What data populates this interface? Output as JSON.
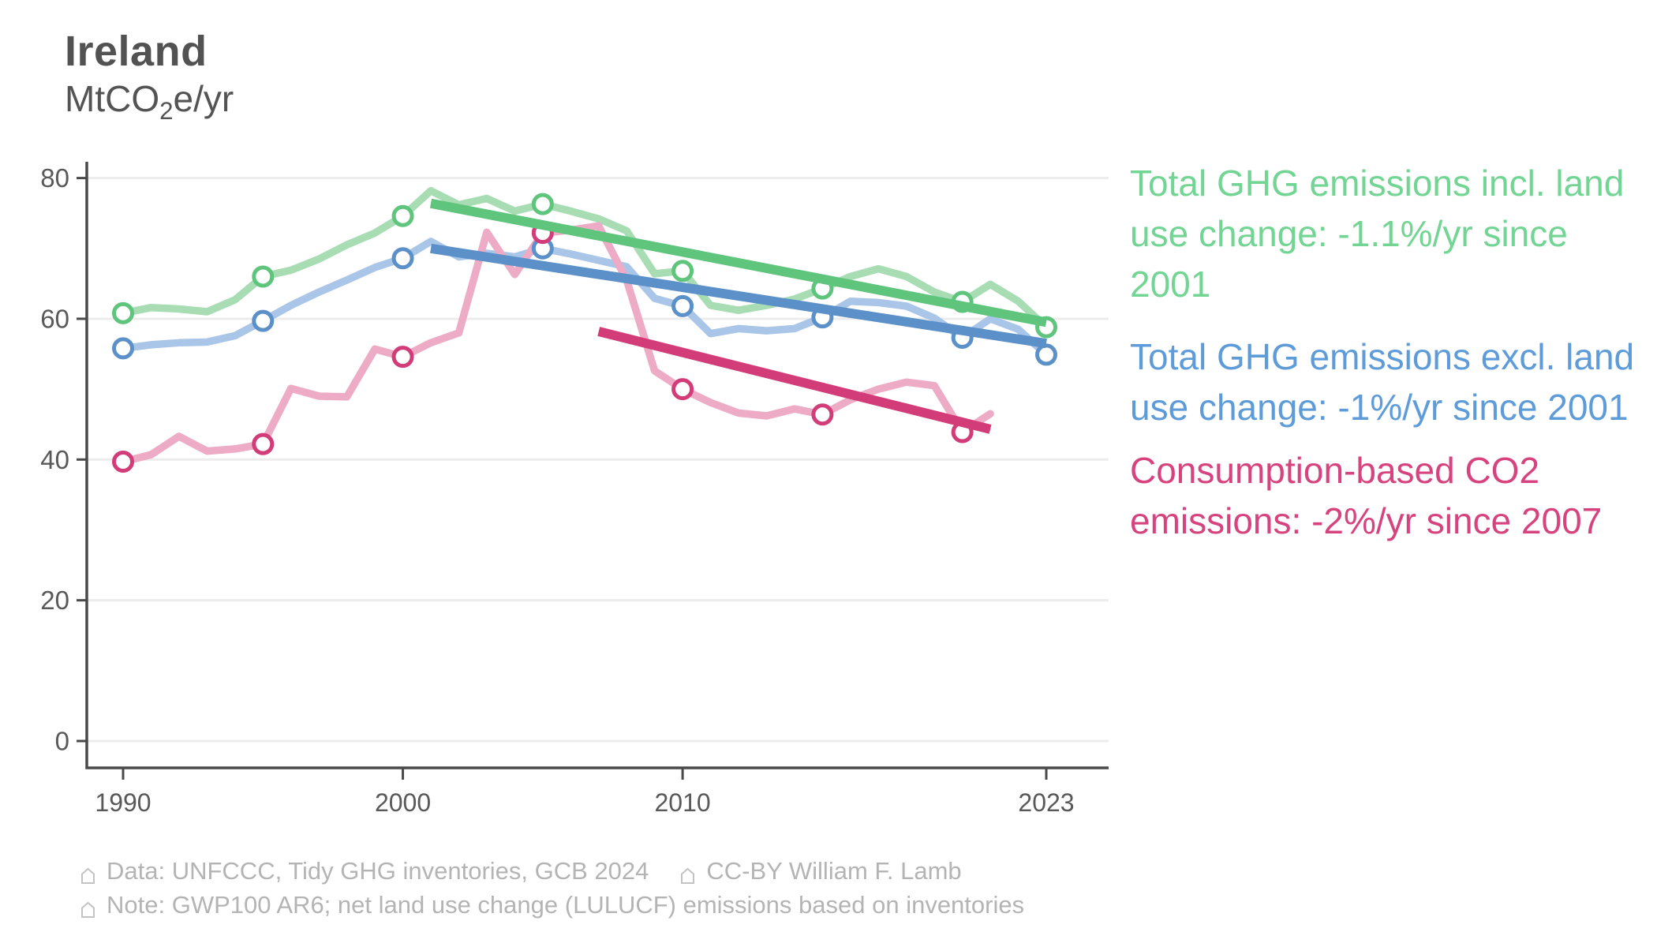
{
  "header": {
    "title": "Ireland",
    "unit_pre": "MtCO",
    "unit_sub": "2",
    "unit_post": "e/yr"
  },
  "chart_data": {
    "type": "line",
    "title": "Ireland",
    "ylabel": "MtCO2e/yr",
    "xlabel": "",
    "grid": "horizontal",
    "xlim": [
      1988.8,
      2025
    ],
    "ylim": [
      0,
      84
    ],
    "x_ticks": [
      {
        "year": 1990,
        "label": "1990"
      },
      {
        "year": 2000,
        "label": "2000"
      },
      {
        "year": 2010,
        "label": "2010"
      },
      {
        "year": 2023,
        "label": "2023"
      }
    ],
    "y_ticks": [
      {
        "value": 0,
        "label": "0"
      },
      {
        "value": 20,
        "label": "20"
      },
      {
        "value": 40,
        "label": "40"
      },
      {
        "value": 60,
        "label": "60"
      },
      {
        "value": 80,
        "label": "80"
      }
    ],
    "series": [
      {
        "id": "ghg-incl-luc",
        "name": "Total GHG emissions incl. land use change",
        "x_start": 1990,
        "values": [
          60.8,
          61.6,
          61.4,
          61.0,
          62.7,
          66.0,
          66.9,
          68.5,
          70.5,
          72.2,
          74.6,
          78.2,
          76.2,
          77.1,
          75.3,
          76.3,
          75.3,
          74.2,
          72.5,
          66.4,
          66.8,
          61.9,
          61.2,
          61.9,
          62.8,
          64.3,
          66.0,
          67.1,
          66.0,
          63.8,
          62.4,
          64.9,
          62.5,
          58.8
        ],
        "marker_years": [
          1990,
          1995,
          2000,
          2005,
          2010,
          2015,
          2020,
          2023
        ],
        "trend": {
          "label": "-1.1%/yr since 2001",
          "from": {
            "year": 2001,
            "value": 76.4
          },
          "to": {
            "year": 2023,
            "value": 59.5
          }
        },
        "color_line": "#a8ddb4",
        "color_accent": "#5fc47c"
      },
      {
        "id": "ghg-excl-luc",
        "name": "Total GHG emissions excl. land use change",
        "x_start": 1990,
        "values": [
          55.8,
          56.3,
          56.6,
          56.7,
          57.6,
          59.7,
          61.9,
          63.8,
          65.5,
          67.3,
          68.6,
          71.0,
          68.8,
          69.3,
          68.8,
          70.0,
          69.2,
          68.3,
          67.4,
          62.9,
          61.8,
          57.9,
          58.6,
          58.3,
          58.6,
          60.2,
          62.5,
          62.3,
          61.8,
          60.1,
          57.3,
          60.0,
          58.5,
          54.9
        ],
        "marker_years": [
          1990,
          1995,
          2000,
          2005,
          2010,
          2015,
          2020,
          2023
        ],
        "trend": {
          "label": "-1%/yr since 2001",
          "from": {
            "year": 2001,
            "value": 70.0
          },
          "to": {
            "year": 2023,
            "value": 56.5
          }
        },
        "color_line": "#a9c5e8",
        "color_accent": "#5b90c9"
      },
      {
        "id": "consumption-co2",
        "name": "Consumption-based CO2 emissions",
        "x_start": 1990,
        "values": [
          39.7,
          40.7,
          43.3,
          41.2,
          41.5,
          42.2,
          50.1,
          49.0,
          48.9,
          55.7,
          54.6,
          56.6,
          58.0,
          72.3,
          66.3,
          72.2,
          72.6,
          73.2,
          65.5,
          52.6,
          50.0,
          48.1,
          46.6,
          46.2,
          47.2,
          46.4,
          48.5,
          50.0,
          51.0,
          50.5,
          43.9,
          46.5
        ],
        "marker_years": [
          1990,
          1995,
          2000,
          2005,
          2010,
          2015,
          2020
        ],
        "trend": {
          "label": "-2%/yr since 2007",
          "from": {
            "year": 2007,
            "value": 58.2
          },
          "to": {
            "year": 2021,
            "value": 44.3
          }
        },
        "color_line": "#edabc5",
        "color_accent": "#d23d79"
      }
    ],
    "style": {
      "grid_color": "#ececec",
      "axis_color": "#4a4a4a",
      "tick_label_color": "#595959"
    }
  },
  "legend": {
    "items": [
      {
        "text": "Total GHG emissions incl. land use change: -1.1%/yr since 2001",
        "color": "#72d593"
      },
      {
        "text": "Total GHG emissions excl. land use change: -1%/yr since 2001",
        "color": "#5e9cd9"
      },
      {
        "text": "Consumption-based CO2 emissions: -2%/yr since 2007",
        "color": "#d6437f"
      }
    ]
  },
  "footer": {
    "line1_a": "Data: UNFCCC, Tidy GHG inventories, GCB 2024",
    "line1_b": "CC-BY William F. Lamb",
    "line2": "Note: GWP100 AR6; net land use change (LULUCF) emissions based on inventories"
  }
}
